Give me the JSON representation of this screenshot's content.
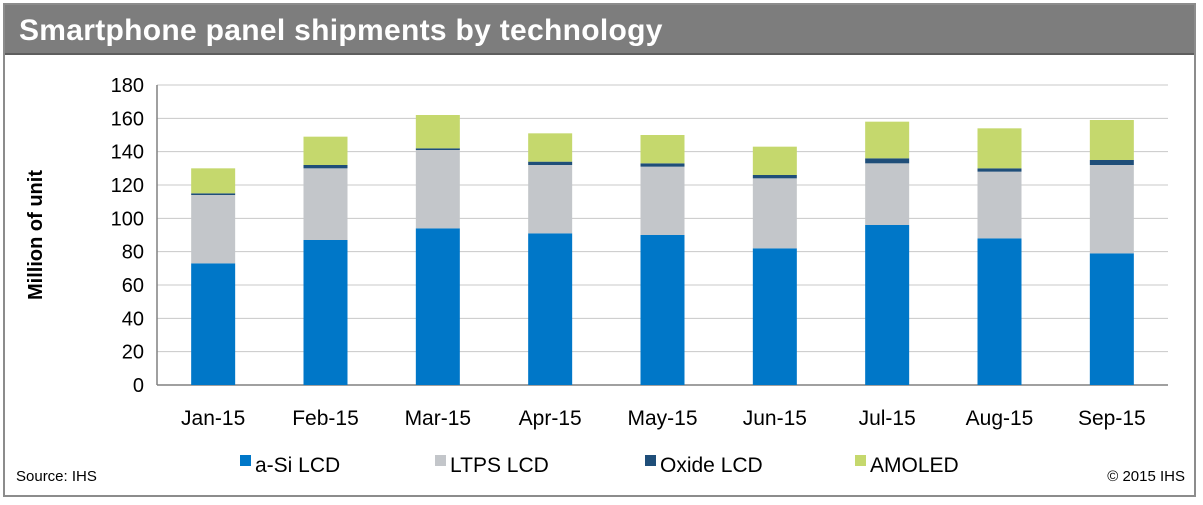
{
  "title": "Smartphone panel shipments by technology",
  "source": "Source: IHS",
  "copyright": "© 2015 IHS",
  "chart_data": {
    "type": "bar",
    "stacked": true,
    "title": "Smartphone panel shipments by technology",
    "xlabel": "",
    "ylabel": "Million of unit",
    "ylim": [
      0,
      180
    ],
    "yticks": [
      0,
      20,
      40,
      60,
      80,
      100,
      120,
      140,
      160,
      180
    ],
    "grid": true,
    "legend_position": "bottom",
    "categories": [
      "Jan-15",
      "Feb-15",
      "Mar-15",
      "Apr-15",
      "May-15",
      "Jun-15",
      "Jul-15",
      "Aug-15",
      "Sep-15"
    ],
    "series": [
      {
        "name": "a-Si LCD",
        "color": "#0077c8",
        "values": [
          73,
          87,
          94,
          91,
          90,
          82,
          96,
          88,
          79
        ]
      },
      {
        "name": "LTPS LCD",
        "color": "#c3c6ca",
        "values": [
          41,
          43,
          47,
          41,
          41,
          42,
          37,
          40,
          53
        ]
      },
      {
        "name": "Oxide LCD",
        "color": "#1f4e79",
        "values": [
          1,
          2,
          1,
          2,
          2,
          2,
          3,
          2,
          3
        ]
      },
      {
        "name": "AMOLED",
        "color": "#c5d86d",
        "values": [
          15,
          17,
          20,
          17,
          17,
          17,
          22,
          24,
          24
        ]
      }
    ]
  }
}
